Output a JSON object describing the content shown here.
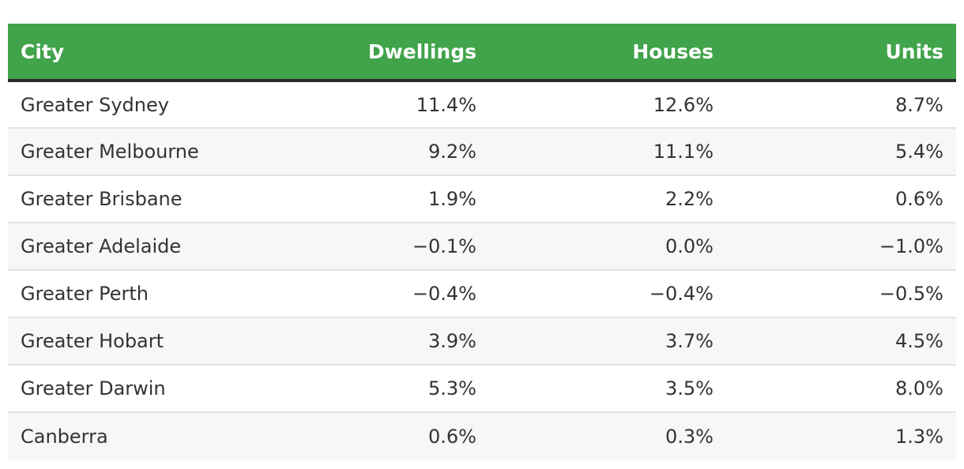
{
  "table": {
    "header_color": "#41a34a",
    "columns": [
      "City",
      "Dwellings",
      "Houses",
      "Units"
    ],
    "rows": [
      {
        "city": "Greater Sydney",
        "dwellings": "11.4%",
        "houses": "12.6%",
        "units": "8.7%"
      },
      {
        "city": "Greater Melbourne",
        "dwellings": "9.2%",
        "houses": "11.1%",
        "units": "5.4%"
      },
      {
        "city": "Greater Brisbane",
        "dwellings": "1.9%",
        "houses": "2.2%",
        "units": "0.6%"
      },
      {
        "city": "Greater Adelaide",
        "dwellings": "−0.1%",
        "houses": "0.0%",
        "units": "−1.0%"
      },
      {
        "city": "Greater Perth",
        "dwellings": "−0.4%",
        "houses": "−0.4%",
        "units": "−0.5%"
      },
      {
        "city": "Greater Hobart",
        "dwellings": "3.9%",
        "houses": "3.7%",
        "units": "4.5%"
      },
      {
        "city": "Greater Darwin",
        "dwellings": "5.3%",
        "houses": "3.5%",
        "units": "8.0%"
      },
      {
        "city": "Canberra",
        "dwellings": "0.6%",
        "houses": "0.3%",
        "units": "1.3%"
      }
    ]
  }
}
